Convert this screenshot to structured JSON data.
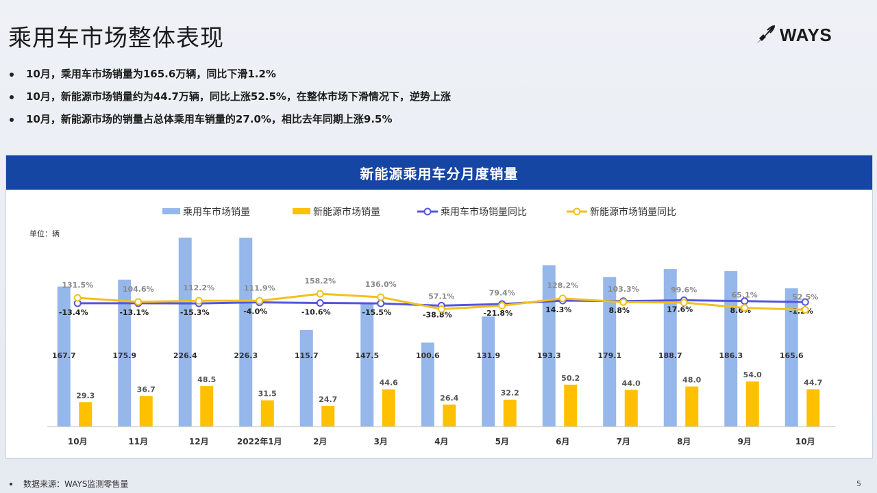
{
  "page": {
    "title": "乘用车市场整体表现",
    "logo_text": "WAYS",
    "bullets": [
      "10月，乘用车市场销量为165.6万辆，同比下滑1.2%",
      "10月，新能源市场销量约为44.7万辆，同比上涨52.5%，在整体市场下滑情况下，逆势上涨",
      "10月，新能源市场的销量占总体乘用车销量的27.0%，相比去年同期上涨9.5%"
    ],
    "footer_note": "数据来源：WAYS监测零售量",
    "page_number": "5"
  },
  "chart_data": {
    "type": "bar",
    "title": "新能源乘用车分月度销量",
    "unit_label": "单位：辆",
    "categories": [
      "10月",
      "11月",
      "12月",
      "2022年1月",
      "2月",
      "3月",
      "4月",
      "5月",
      "6月",
      "7月",
      "8月",
      "9月",
      "10月"
    ],
    "series": [
      {
        "name": "乘用车市场销量",
        "type": "bar",
        "axis": "left",
        "color": "#95b7ea",
        "values": [
          167.7,
          175.9,
          226.4,
          226.3,
          115.7,
          147.5,
          100.6,
          131.9,
          193.3,
          179.1,
          188.7,
          186.3,
          165.6
        ]
      },
      {
        "name": "新能源市场销量",
        "type": "bar",
        "axis": "left",
        "color": "#ffc000",
        "values": [
          29.3,
          36.7,
          48.5,
          31.5,
          24.7,
          44.6,
          26.4,
          32.2,
          50.2,
          44.0,
          48.0,
          54.0,
          44.7
        ]
      },
      {
        "name": "乘用车市场销量同比",
        "type": "line",
        "axis": "right",
        "color": "#5555dd",
        "values": [
          -13.4,
          -13.1,
          -15.3,
          -4.0,
          -10.6,
          -15.5,
          -38.8,
          -21.8,
          14.3,
          8.8,
          17.6,
          8.6,
          -1.2
        ]
      },
      {
        "name": "新能源市场销量同比",
        "type": "line",
        "axis": "right",
        "color": "#f2c01e",
        "values": [
          131.5,
          104.6,
          112.2,
          111.9,
          158.2,
          136.0,
          57.1,
          79.4,
          128.2,
          103.3,
          99.6,
          65.1,
          52.5
        ]
      }
    ],
    "bar_value_labels": [
      [
        "167.7",
        "175.9",
        "226.4",
        "226.3",
        "115.7",
        "147.5",
        "100.6",
        "131.9",
        "193.3",
        "179.1",
        "188.7",
        "186.3",
        "165.6"
      ],
      [
        "29.3",
        "36.7",
        "48.5",
        "31.5",
        "24.7",
        "44.6",
        "26.4",
        "32.2",
        "50.2",
        "44.0",
        "48.0",
        "54.0",
        "44.7"
      ]
    ],
    "line_value_labels": [
      [
        "-13.4%",
        "-13.1%",
        "-15.3%",
        "-4.0%",
        "-10.6%",
        "-15.5%",
        "-38.8%",
        "-21.8%",
        "14.3%",
        "8.8%",
        "17.6%",
        "8.6%",
        "-1.2%"
      ],
      [
        "131.5%",
        "104.6%",
        "112.2%",
        "111.9%",
        "158.2%",
        "136.0%",
        "57.1%",
        "79.4%",
        "128.2%",
        "103.3%",
        "99.6%",
        "65.1%",
        "52.5%"
      ]
    ],
    "legend_position": "top-center",
    "grid": false
  }
}
